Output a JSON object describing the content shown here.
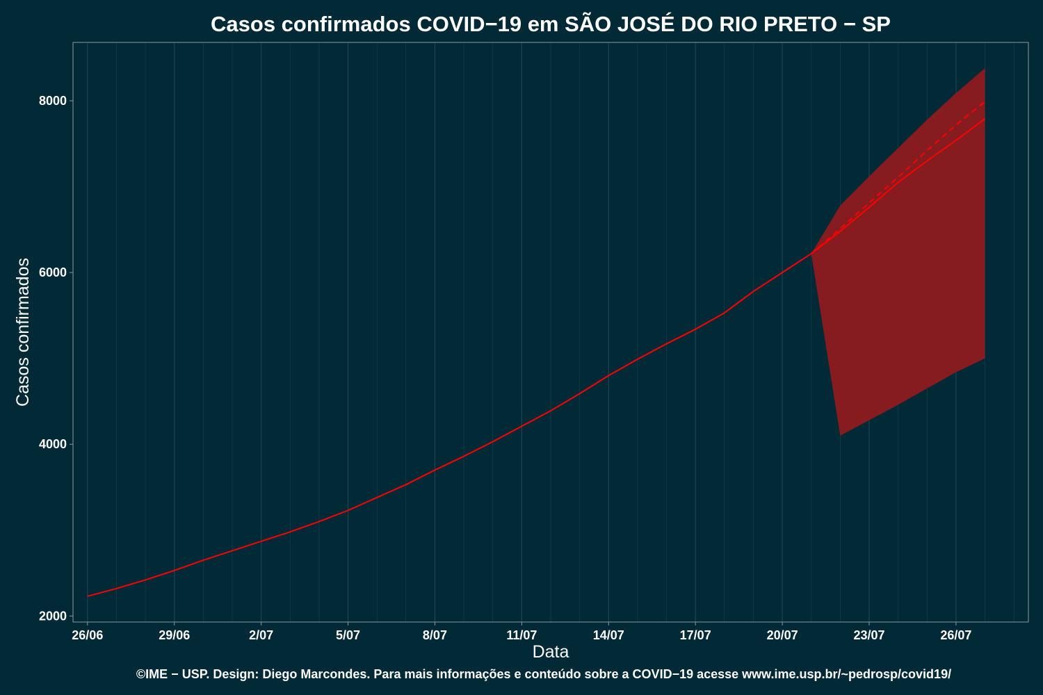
{
  "chart_data": {
    "type": "line",
    "title": "Casos confirmados COVID−19 em SÃO JOSÉ DO RIO PRETO − SP",
    "xlabel": "Data",
    "ylabel": "Casos confirmados",
    "caption": "©IME − USP. Design: Diego Marcondes. Para mais informações e conteúdo sobre a COVID−19 acesse www.ime.usp.br/~pedrosp/covid19/",
    "x_tick_labels": [
      "26/06",
      "29/06",
      "2/07",
      "5/07",
      "8/07",
      "11/07",
      "14/07",
      "17/07",
      "20/07",
      "23/07",
      "26/07"
    ],
    "y_ticks": [
      2000,
      4000,
      6000,
      8000
    ],
    "ylim": [
      1930,
      8680
    ],
    "xlim": [
      "2020-06-26",
      "2020-07-28"
    ],
    "grid": true,
    "series": [
      {
        "kind": "observed",
        "color": "#ff0000",
        "dates": [
          "2020-06-26",
          "2020-06-27",
          "2020-06-28",
          "2020-06-29",
          "2020-06-30",
          "2020-07-01",
          "2020-07-02",
          "2020-07-03",
          "2020-07-04",
          "2020-07-05",
          "2020-07-06",
          "2020-07-07",
          "2020-07-08",
          "2020-07-09",
          "2020-07-10",
          "2020-07-11",
          "2020-07-12",
          "2020-07-13",
          "2020-07-14",
          "2020-07-15",
          "2020-07-16",
          "2020-07-17",
          "2020-07-18",
          "2020-07-19",
          "2020-07-20",
          "2020-07-21"
        ],
        "values": [
          2230,
          2320,
          2420,
          2530,
          2650,
          2760,
          2870,
          2980,
          3100,
          3230,
          3380,
          3530,
          3700,
          3860,
          4030,
          4210,
          4390,
          4590,
          4800,
          4990,
          5170,
          5340,
          5530,
          5780,
          6000,
          6220
        ]
      },
      {
        "kind": "forecast",
        "color": "#ff0000",
        "dates": [
          "2020-07-21",
          "2020-07-22",
          "2020-07-23",
          "2020-07-24",
          "2020-07-25",
          "2020-07-26",
          "2020-07-27"
        ],
        "values": [
          6220,
          6480,
          6760,
          7050,
          7300,
          7540,
          7790
        ]
      },
      {
        "kind": "forecast-dashed",
        "color": "#ff0000",
        "dates": [
          "2020-07-21",
          "2020-07-22",
          "2020-07-23",
          "2020-07-24",
          "2020-07-25",
          "2020-07-26",
          "2020-07-27"
        ],
        "values": [
          6220,
          6510,
          6810,
          7110,
          7420,
          7720,
          7990
        ]
      }
    ],
    "band": {
      "color": "#861c1f",
      "dates": [
        "2020-07-21",
        "2020-07-22",
        "2020-07-23",
        "2020-07-24",
        "2020-07-25",
        "2020-07-26",
        "2020-07-27"
      ],
      "upper": [
        6220,
        6780,
        7120,
        7450,
        7780,
        8090,
        8380
      ],
      "lower": [
        6220,
        4100,
        4280,
        4460,
        4650,
        4840,
        5000
      ]
    },
    "colors": {
      "background": "#022936",
      "grid": "#1f4750",
      "panel_border": "#8a9a9e",
      "text": "#ffffff"
    }
  }
}
